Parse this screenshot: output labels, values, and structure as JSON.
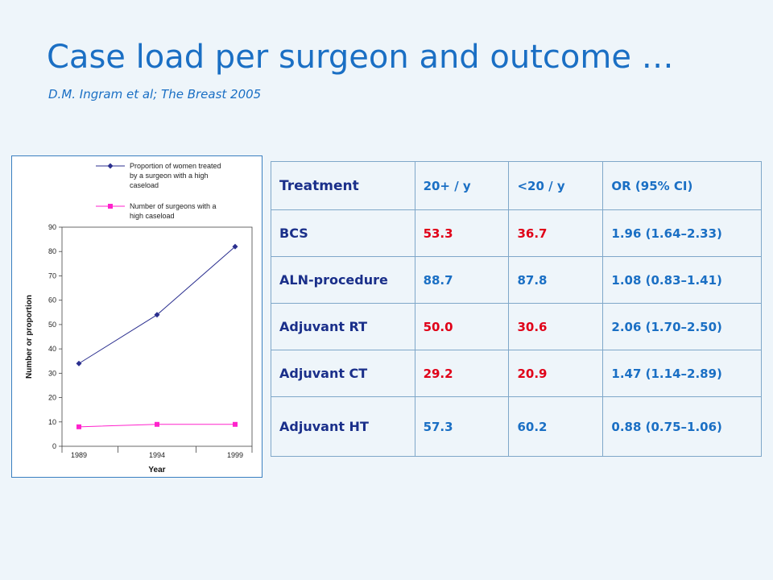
{
  "slide": {
    "title": "Case load per surgeon and outcome …",
    "citation": "D.M. Ingram et al; The Breast 2005"
  },
  "chart_data": {
    "type": "line",
    "x": [
      1989,
      1994,
      1999
    ],
    "categories": [
      "1989",
      "1994",
      "1999"
    ],
    "series": [
      {
        "name": "Proportion of women treated by a surgeon with a high caseload",
        "legend_lines": [
          "Proportion of women treated",
          "by a surgeon with a high",
          "caseload"
        ],
        "color": "#2b2f8f",
        "marker": "diamond",
        "values": [
          34,
          54,
          82
        ]
      },
      {
        "name": "Number of surgeons with a high caseload",
        "legend_lines": [
          "Number of surgeons with a",
          "high caseload"
        ],
        "color": "#ff22cc",
        "marker": "square",
        "values": [
          8,
          9,
          9
        ]
      }
    ],
    "ylim": [
      0,
      90
    ],
    "yticks": [
      0,
      10,
      20,
      30,
      40,
      50,
      60,
      70,
      80,
      90
    ],
    "xlabel": "Year",
    "ylabel": "Number or proportion",
    "legend": "top-right",
    "grid": false
  },
  "table": {
    "headers": [
      "Treatment",
      "20+ / y",
      "<20 / y",
      "OR    (95% CI)"
    ],
    "rows": [
      {
        "treatment": "BCS",
        "high": "53.3",
        "low": "36.7",
        "or": "1.96 (1.64–2.33)",
        "high_color": "#e00018",
        "low_color": "#e00018"
      },
      {
        "treatment": "ALN-procedure",
        "high": "88.7",
        "low": "87.8",
        "or": "1.08 (0.83–1.41)",
        "high_color": "#1a6fc4",
        "low_color": "#1a6fc4"
      },
      {
        "treatment": "Adjuvant RT",
        "high": "50.0",
        "low": "30.6",
        "or": "2.06 (1.70–2.50)",
        "high_color": "#e00018",
        "low_color": "#e00018"
      },
      {
        "treatment": "Adjuvant CT",
        "high": "29.2",
        "low": "20.9",
        "or": "1.47 (1.14–2.89)",
        "high_color": "#e00018",
        "low_color": "#e00018"
      },
      {
        "treatment": "Adjuvant HT",
        "high": "57.3",
        "low": "60.2",
        "or": "0.88  (0.75–1.06)",
        "high_color": "#1a6fc4",
        "low_color": "#1a6fc4"
      }
    ]
  }
}
